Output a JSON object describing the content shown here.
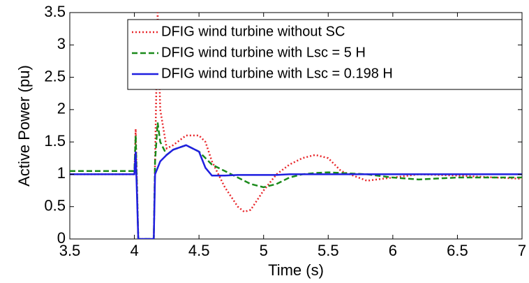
{
  "chart_data": {
    "type": "line",
    "xlabel": "Time (s)",
    "ylabel": "Active Power (pu)",
    "x": [
      3.5,
      3.9,
      4.0,
      4.01,
      4.03,
      4.05,
      4.15,
      4.16,
      4.18,
      4.2,
      4.25,
      4.3,
      4.4,
      4.5,
      4.55,
      4.6,
      4.7,
      4.8,
      4.85,
      4.9,
      5.0,
      5.1,
      5.2,
      5.3,
      5.4,
      5.5,
      5.6,
      5.8,
      6.0,
      6.2,
      6.5,
      7.0
    ],
    "series": [
      {
        "name": "DFIG wind turbine without SC",
        "color": "#e8262a",
        "style": "dotted",
        "values": [
          1.0,
          1.0,
          1.0,
          1.7,
          0.0,
          0.0,
          0.0,
          1.2,
          3.5,
          2.0,
          1.4,
          1.45,
          1.6,
          1.6,
          1.5,
          1.2,
          0.8,
          0.5,
          0.42,
          0.45,
          0.75,
          1.0,
          1.15,
          1.25,
          1.3,
          1.25,
          1.05,
          0.9,
          0.95,
          1.0,
          0.98,
          0.93
        ]
      },
      {
        "name": "DFIG wind turbine with Lsc = 5 H",
        "color": "#1a8a1a",
        "style": "dashed",
        "values": [
          1.05,
          1.05,
          1.05,
          1.6,
          0.0,
          0.0,
          0.0,
          1.2,
          1.8,
          1.5,
          1.3,
          1.38,
          1.45,
          1.35,
          1.25,
          1.15,
          1.05,
          0.95,
          0.9,
          0.85,
          0.8,
          0.85,
          0.95,
          1.0,
          1.02,
          1.03,
          1.02,
          1.0,
          0.95,
          0.92,
          0.95,
          0.95
        ]
      },
      {
        "name": "DFIG wind turbine with Lsc = 0.198 H",
        "color": "#1f1fe0",
        "style": "solid",
        "values": [
          1.0,
          1.0,
          1.0,
          1.35,
          0.0,
          0.0,
          0.0,
          1.0,
          1.1,
          1.2,
          1.3,
          1.38,
          1.45,
          1.35,
          1.1,
          0.98,
          0.98,
          0.99,
          0.99,
          0.99,
          0.99,
          0.99,
          1.0,
          1.0,
          1.0,
          1.0,
          1.0,
          1.0,
          1.0,
          1.0,
          1.0,
          1.0
        ]
      }
    ],
    "xlim": [
      3.5,
      7
    ],
    "xticks": [
      3.5,
      4,
      4.5,
      5,
      5.5,
      6,
      6.5,
      7
    ],
    "ylim": [
      0,
      3.5
    ],
    "yticks": [
      0,
      0.5,
      1,
      1.5,
      2,
      2.5,
      3,
      3.5
    ],
    "legend": "upper-right",
    "grid": false
  }
}
